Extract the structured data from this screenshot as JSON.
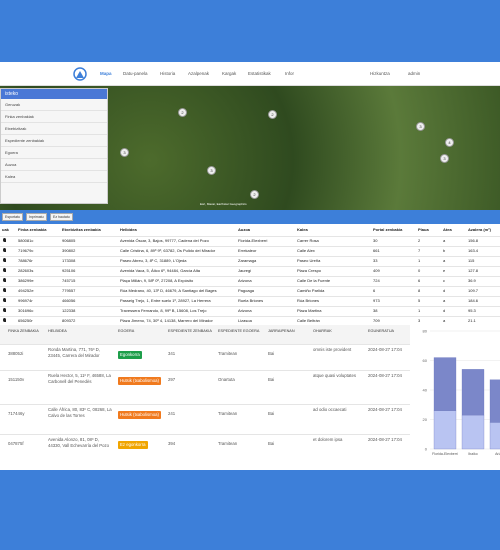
{
  "nav": {
    "items": [
      "Mapa",
      "Datu-panela",
      "Historia",
      "Azalpenak",
      "Kargak",
      "Estatistikak",
      "Infor"
    ],
    "language": "Hizkuntza",
    "user": "admin"
  },
  "map": {
    "panel_title": "isteko",
    "panel_items": [
      "Geruzak",
      "Finka zenbakiak",
      "Etxebizitzak",
      "Espediente zenbakiak",
      "Egoera",
      "Auzoa",
      "Kalea"
    ],
    "clusters": [
      "3",
      "2",
      "3",
      "2",
      "3",
      "3",
      "4",
      "2"
    ],
    "attribution": "Esri, Maxar, Earthstar Geographics"
  },
  "toolbar": [
    "Esportatu",
    "Inprimatu",
    "Ez hautatu"
  ],
  "table": {
    "headers": [
      "uak",
      "Finka zenbakia",
      "Etxebizitza zenbakia",
      "Helbidea",
      "Auzoa",
      "Kalea",
      "Portal zenbakia",
      "Plaua",
      "Atea",
      "Azalera (m²)"
    ],
    "rows": [
      [
        "580081c",
        "906805",
        "Avenida Óscar, 3, Bajos, 99777, Cadena del Pozo",
        "Florida-Elexberri",
        "Carrer Rosa",
        "30",
        "2",
        "a",
        "156.8"
      ],
      [
        "719679c",
        "390802",
        "Calle Cristina, 6, 89º 9º, 63782, Os Pulido del Mirador",
        "Errekaleor",
        "Calle Alex",
        "661",
        "7",
        "b",
        "163.4"
      ],
      [
        "788676r",
        "173308",
        "Paseo Abreu, 3, 8º C, 31889, L'Ojeda",
        "Zaramaga",
        "Paseo Ureña",
        "33",
        "1",
        "a",
        "115"
      ],
      [
        "282603s",
        "925106",
        "Avenida Vaca, 5, Ático 6º, 94484, García Alta",
        "Jauregi",
        "Plaza Crespo",
        "409",
        "0",
        "e",
        "127.8"
      ],
      [
        "386299e",
        "745715",
        "Plaça Millán, 9, 58º 0º, 27208, A Expósito",
        "Arizona",
        "Calle De la Fuente",
        "724",
        "6",
        "c",
        "36.9"
      ],
      [
        "494252e",
        "779557",
        "Rúa Medrano, 40, 13º D, 46679, A Santiago del Bages",
        "Pagoaga",
        "Camiño Parlida",
        "6",
        "8",
        "d",
        "109.7"
      ],
      [
        "996974r",
        "466056",
        "Passeig Trejo, 1, Entre suelo 1º, 28927, La Herrera",
        "Ruela Briones",
        "Rúa Briones",
        "973",
        "5",
        "a",
        "184.6"
      ],
      [
        "301696c",
        "122338",
        "Travessera Fernando, 8, 99º B, 15608, Los Trejo",
        "Arizona",
        "Plaza Martina",
        "38",
        "1",
        "d",
        "95.3"
      ],
      [
        "656250r",
        "809372",
        "Plaza Jimeno, 74, 30º 4, 14138, Marrero del Mirador",
        "Lizasoa",
        "Calle Beltrán",
        "709",
        "3",
        "a",
        "21.1"
      ]
    ]
  },
  "details": {
    "headers": [
      "FINKA ZENBAKIA",
      "HELBIDEA",
      "EGOERA",
      "ESPEDIENTE ZENBAKIA",
      "ESPEDIENTE EGOERA",
      "JARRAIPENAN",
      "OHARRAK",
      "EGUNERATUA"
    ],
    "rows": [
      [
        "388052i",
        "Ronda Martina, 771, 76º D, 23445, Carrera del Mirador",
        "Egonkorra",
        "341",
        "Tramitean",
        "Bai",
        "omnis iste provident",
        "2024-08-27 17:04"
      ],
      [
        "151150v",
        "Ruela Hector, 5, 11º F, 46588, La Carbonell del Penedès",
        "Hutsik (txabolismoa)",
        "297",
        "Onartuta",
        "Bai",
        "atque quasi voluptates",
        "2024-08-27 17:04"
      ],
      [
        "717446y",
        "Calle África, 80, 83º C, 08268, La Calvo de las Torres",
        "Hutsik (txabolismoa)",
        "241",
        "Tramitean",
        "Bai",
        "ad odio occaecati",
        "2024-08-27 17:04"
      ],
      [
        "047875f",
        "Avenida Alonzo, 81, 08º D, 44330, Vall Echevarría del Pozo",
        "Ez egonkorra",
        "394",
        "Tramitean",
        "Bai",
        "et dolorem ipsa",
        "2024-08-27 17:04"
      ]
    ],
    "status_colors": {
      "Egonkorra": "#1e9e4a",
      "Hutsik (txabolismoa)": "#f07a1e",
      "Ez egonkorra": "#f0a500"
    }
  },
  "chart_data": {
    "type": "bar",
    "categories": [
      "Florida-Elexberri",
      "Ibaiko",
      "Arizona"
    ],
    "series": [
      {
        "color": "#b9c4f2",
        "values": [
          26,
          23,
          18
        ]
      },
      {
        "color": "#7b87c9",
        "values": [
          36,
          31,
          29
        ]
      }
    ],
    "ylim": [
      0,
      80
    ],
    "yticks": [
      0,
      20,
      40,
      60,
      80
    ],
    "grid": true
  }
}
